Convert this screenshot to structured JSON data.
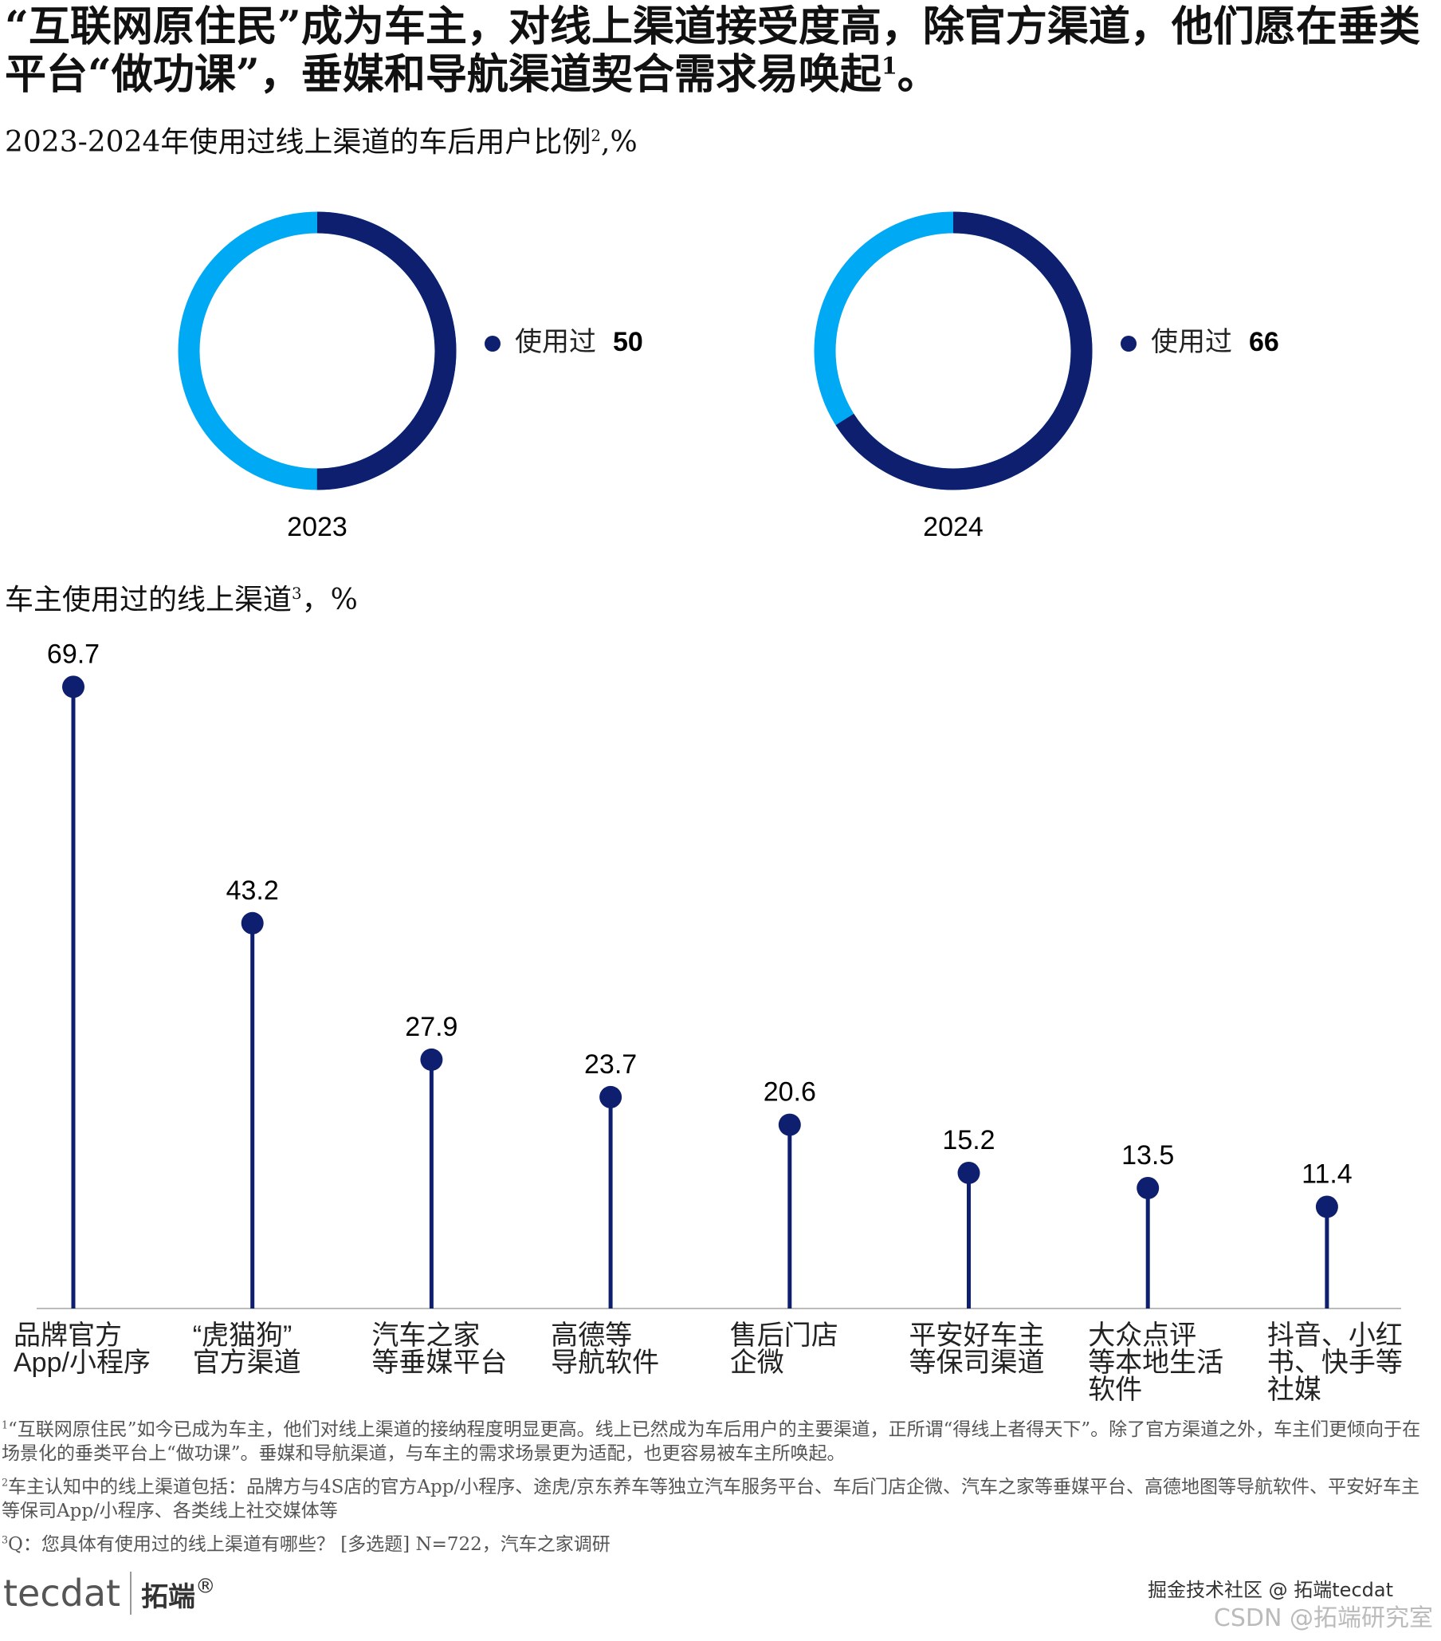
{
  "headline": {
    "text": "“互联网原住民”成为车主，对线上渠道接受度高，除官方渠道，他们愿在垂类平台“做功课”，垂媒和导航渠道契合需求易唤起",
    "note": "1",
    "end": "。"
  },
  "chart_data": [
    {
      "type": "donut",
      "title": "2023-2024年使用过线上渠道的车后用户比例",
      "title_note": "2",
      "title_unit": ",%",
      "categories": [
        "2023",
        "2024"
      ],
      "series": [
        {
          "name": "使用过",
          "color": "#0d1f6e",
          "values": [
            50,
            66
          ]
        }
      ],
      "rest_color": "#00a9f4"
    },
    {
      "type": "lollipop",
      "title": "车主使用过的线上渠道",
      "title_note": "3",
      "title_unit": "，%",
      "categories": [
        [
          "品牌官方",
          "App/小程序"
        ],
        [
          "“虎猫狗”",
          "官方渠道"
        ],
        [
          "汽车之家",
          "等垂媒平台"
        ],
        [
          "高德等",
          "导航软件"
        ],
        [
          "售后门店",
          "企微"
        ],
        [
          "平安好车主",
          "等保司渠道"
        ],
        [
          "大众点评",
          "等本地生活",
          "软件"
        ],
        [
          "抖音、小红",
          "书、快手等",
          "社媒"
        ]
      ],
      "values": [
        69.7,
        43.2,
        27.9,
        23.7,
        20.6,
        15.2,
        13.5,
        11.4
      ],
      "color": "#0d1f6e",
      "ylim": [
        0,
        70
      ]
    }
  ],
  "footnotes": [
    {
      "note": "1",
      "text": "“互联网原住民”如今已成为车主，他们对线上渠道的接纳程度明显更高。线上已然成为车后用户的主要渠道，正所谓“得线上者得天下”。除了官方渠道之外，车主们更倾向于在场景化的垂类平台上“做功课”。垂媒和导航渠道，与车主的需求场景更为适配，也更容易被车主所唤起。"
    },
    {
      "note": "2",
      "text": "车主认知中的线上渠道包括：品牌方与4S店的官方App/小程序、途虎/京东养车等独立汽车服务平台、车后门店企微、汽车之家等垂媒平台、高德地图等导航软件、平安好车主等保司App/小程序、各类线上社交媒体等"
    },
    {
      "note": "3",
      "text": "Q：您具体有使用过的线上渠道有哪些？ [多选题] N=722，汽车之家调研"
    }
  ],
  "logo": {
    "brand": "tecdat",
    "name": "拓端",
    "mark": "®"
  },
  "watermark": [
    "掘金技术社区 @ 拓端tecdat",
    "CSDN @拓端研究室"
  ]
}
